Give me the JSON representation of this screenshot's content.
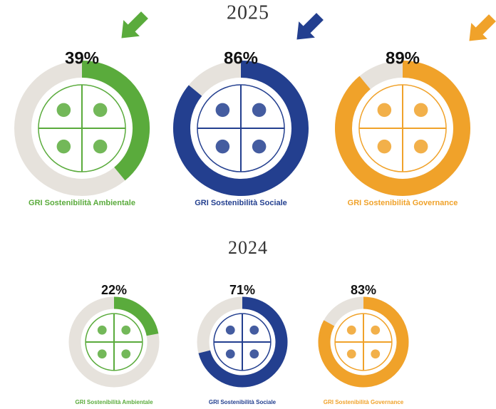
{
  "chart_data": [
    {
      "type": "donut",
      "title": "2025",
      "categories": [
        "GRI Sostenibilità Ambientale",
        "GRI Sostenibilità Sociale",
        "GRI Sostenibilità Governance"
      ],
      "values": [
        39,
        86,
        89
      ],
      "value_labels": [
        "39%",
        "86%",
        "89%"
      ],
      "colors": [
        "#5aab3c",
        "#233f8f",
        "#f0a22a"
      ],
      "track_color": "#e6e2dc"
    },
    {
      "type": "donut",
      "title": "2024",
      "categories": [
        "GRI Sostenibilità Ambientale",
        "GRI Sostenibilità Sociale",
        "GRI Sostenibilità Governance"
      ],
      "values": [
        22,
        71,
        83
      ],
      "value_labels": [
        "22%",
        "71%",
        "83%"
      ],
      "colors": [
        "#5aab3c",
        "#233f8f",
        "#f0a22a"
      ],
      "track_color": "#e6e2dc"
    }
  ]
}
